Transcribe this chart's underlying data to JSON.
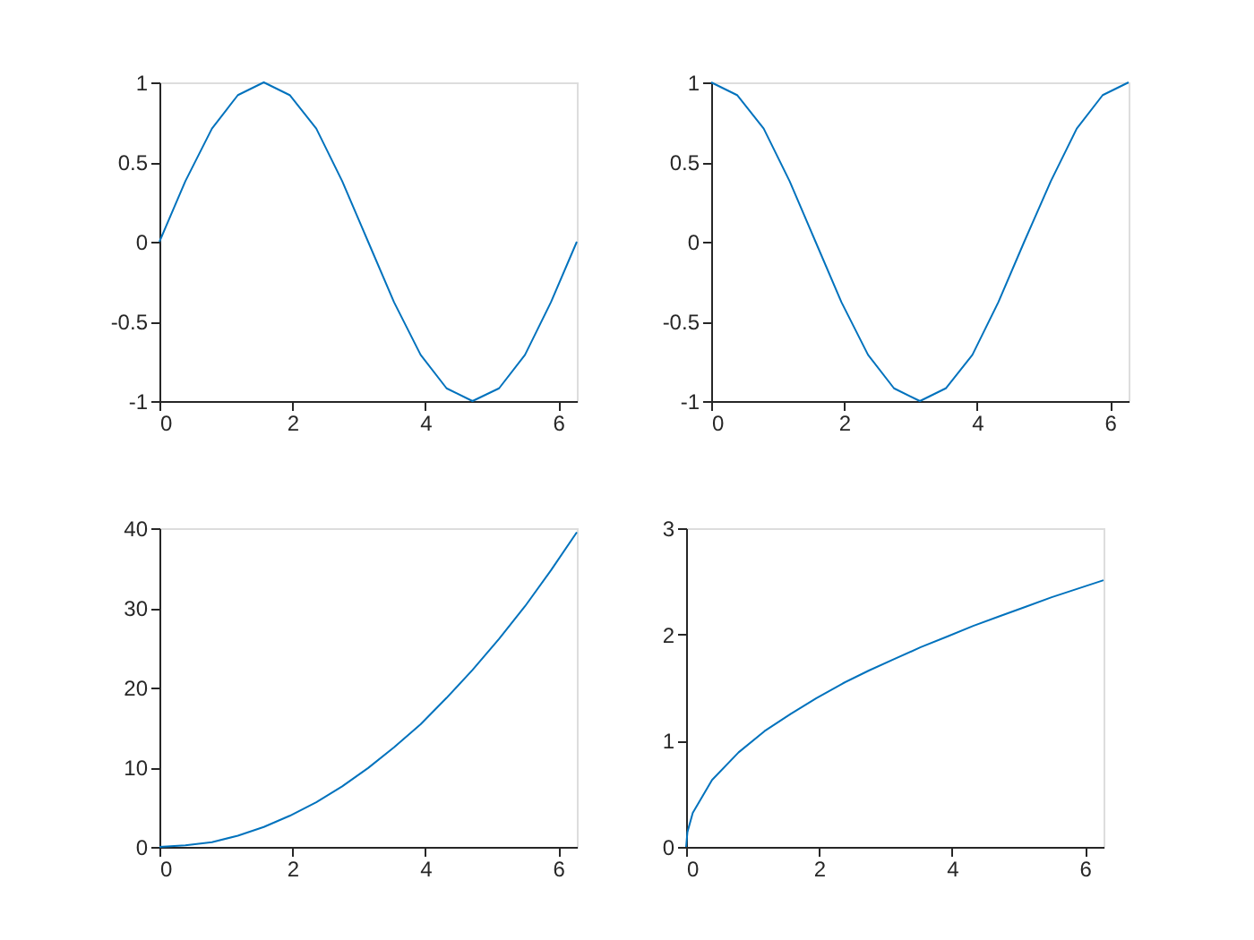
{
  "chart_data": [
    {
      "type": "line",
      "x": [
        0,
        0.39,
        0.79,
        1.18,
        1.57,
        1.96,
        2.36,
        2.75,
        3.14,
        3.53,
        3.93,
        4.32,
        4.71,
        5.11,
        5.5,
        5.89,
        6.28
      ],
      "values": [
        0,
        0.38,
        0.71,
        0.92,
        1,
        0.92,
        0.71,
        0.38,
        0,
        -0.38,
        -0.71,
        -0.92,
        -1,
        -0.92,
        -0.71,
        -0.38,
        0
      ],
      "color": "#0072bd",
      "xlim": [
        0,
        6.28
      ],
      "xticks": [
        0,
        2,
        4,
        6
      ],
      "ylim": [
        -1,
        1
      ],
      "yticks": [
        -1,
        -0.5,
        0,
        0.5,
        1
      ]
    },
    {
      "type": "line",
      "x": [
        0,
        0.39,
        0.79,
        1.18,
        1.57,
        1.96,
        2.36,
        2.75,
        3.14,
        3.53,
        3.93,
        4.32,
        4.71,
        5.11,
        5.5,
        5.89,
        6.28
      ],
      "values": [
        1,
        0.92,
        0.71,
        0.38,
        0,
        -0.38,
        -0.71,
        -0.92,
        -1,
        -0.92,
        -0.71,
        -0.38,
        0,
        0.38,
        0.71,
        0.92,
        1
      ],
      "color": "#0072bd",
      "xlim": [
        0,
        6.28
      ],
      "xticks": [
        0,
        2,
        4,
        6
      ],
      "ylim": [
        -1,
        1
      ],
      "yticks": [
        -1,
        -0.5,
        0,
        0.5,
        1
      ]
    },
    {
      "type": "line",
      "x": [
        0,
        0.39,
        0.79,
        1.18,
        1.57,
        1.96,
        2.36,
        2.75,
        3.14,
        3.53,
        3.93,
        4.32,
        4.71,
        5.11,
        5.5,
        5.89,
        6.28
      ],
      "values": [
        0,
        0.2,
        0.6,
        1.4,
        2.5,
        3.9,
        5.6,
        7.6,
        9.9,
        12.5,
        15.4,
        18.7,
        22.2,
        26.1,
        30.2,
        34.7,
        39.5
      ],
      "color": "#0072bd",
      "xlim": [
        0,
        6.28
      ],
      "xticks": [
        0,
        2,
        4,
        6
      ],
      "ylim": [
        0,
        40
      ],
      "yticks": [
        0,
        10,
        20,
        30,
        40
      ]
    },
    {
      "type": "line",
      "x": [
        0,
        0.02,
        0.1,
        0.39,
        0.79,
        1.18,
        1.57,
        1.96,
        2.36,
        2.75,
        3.14,
        3.53,
        3.93,
        4.32,
        4.71,
        5.11,
        5.5,
        5.89,
        6.28
      ],
      "values": [
        0,
        0.14,
        0.32,
        0.63,
        0.89,
        1.09,
        1.25,
        1.4,
        1.54,
        1.66,
        1.77,
        1.88,
        1.98,
        2.08,
        2.17,
        2.26,
        2.35,
        2.43,
        2.51
      ],
      "color": "#0072bd",
      "xlim": [
        0,
        6.28
      ],
      "xticks": [
        0,
        2,
        4,
        6
      ],
      "ylim": [
        0,
        3
      ],
      "yticks": [
        0,
        1,
        2,
        3
      ]
    }
  ]
}
